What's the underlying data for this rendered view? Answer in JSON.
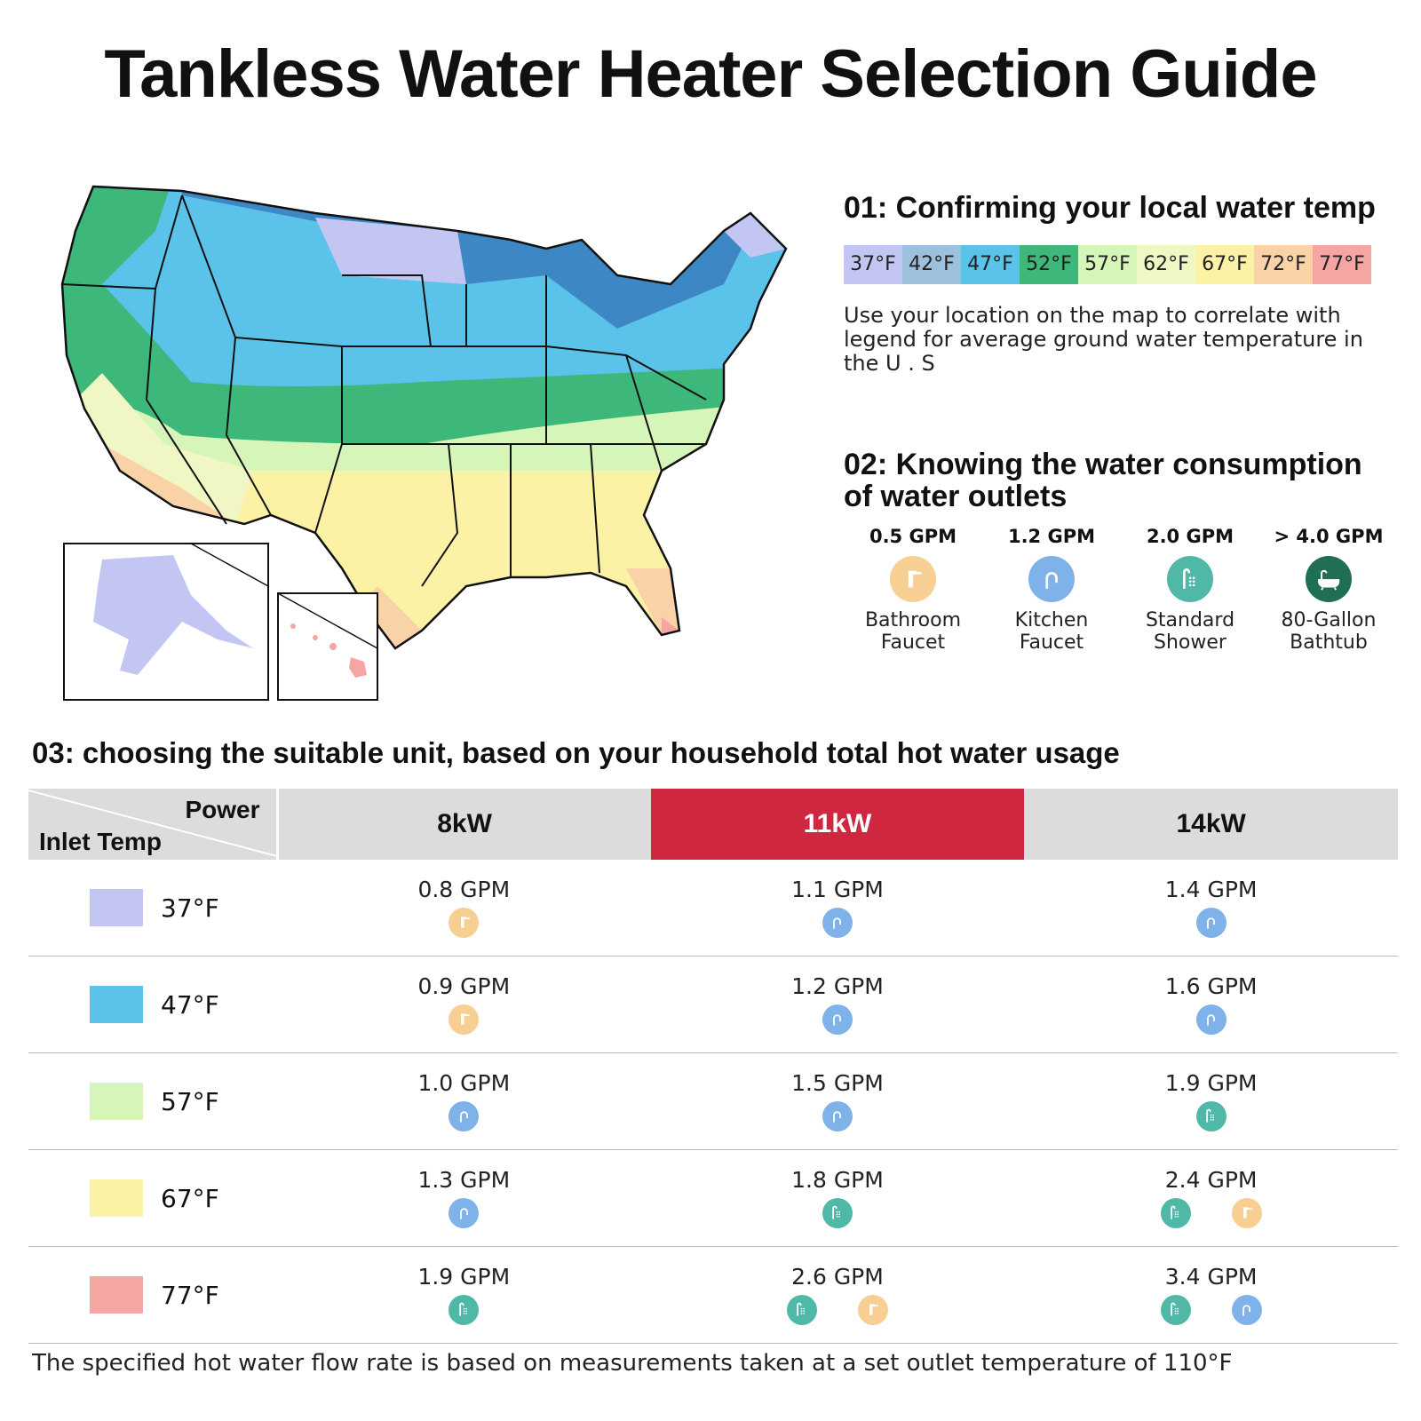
{
  "title": "Tankless Water Heater Selection Guide",
  "section1": {
    "heading": "01:  Confirming your local water temp",
    "legend": [
      {
        "label": "37°F",
        "color": "#c3c6f2"
      },
      {
        "label": "42°F",
        "color": "#9dc1dc"
      },
      {
        "label": "47°F",
        "color": "#5bc3ea"
      },
      {
        "label": "52°F",
        "color": "#3db87a"
      },
      {
        "label": "57°F",
        "color": "#d6f5b8"
      },
      {
        "label": "62°F",
        "color": "#f1f7c4"
      },
      {
        "label": "67°F",
        "color": "#fbf2a6"
      },
      {
        "label": "72°F",
        "color": "#f9d2a8"
      },
      {
        "label": "77°F",
        "color": "#f6a6a2"
      }
    ],
    "description": "Use your location on the map to correlate with legend for average ground water temperature in the U . S"
  },
  "section2": {
    "heading": "02:  Knowing the water consumption of water outlets",
    "outlets": [
      {
        "gpm": "0.5 GPM",
        "name": "Bathroom Faucet",
        "icon": "bathroom-faucet-icon",
        "color": "#f8cf93"
      },
      {
        "gpm": "1.2 GPM",
        "name": "Kitchen Faucet",
        "icon": "kitchen-faucet-icon",
        "color": "#7fb2e8"
      },
      {
        "gpm": "2.0 GPM",
        "name": "Standard Shower",
        "icon": "shower-icon",
        "color": "#4fb8a6"
      },
      {
        "gpm": "> 4.0 GPM",
        "name": "80-Gallon Bathtub",
        "icon": "bathtub-icon",
        "color": "#1f6e55"
      }
    ]
  },
  "section3": {
    "heading": "03:  choosing the suitable unit, based on your household total hot water usage",
    "corner_power": "Power",
    "corner_inlet": "Inlet Temp",
    "columns": [
      "8kW",
      "11kW",
      "14kW"
    ],
    "rows": [
      {
        "temp": "37°F",
        "color": "#c3c6f2",
        "cells": [
          {
            "gpm": "0.8 GPM",
            "icons": [
              "bathroom"
            ]
          },
          {
            "gpm": "1.1 GPM",
            "icons": [
              "kitchen"
            ]
          },
          {
            "gpm": "1.4 GPM",
            "icons": [
              "kitchen"
            ]
          }
        ]
      },
      {
        "temp": "47°F",
        "color": "#5bc3ea",
        "cells": [
          {
            "gpm": "0.9 GPM",
            "icons": [
              "bathroom"
            ]
          },
          {
            "gpm": "1.2 GPM",
            "icons": [
              "kitchen"
            ]
          },
          {
            "gpm": "1.6 GPM",
            "icons": [
              "kitchen"
            ]
          }
        ]
      },
      {
        "temp": "57°F",
        "color": "#d6f5b8",
        "cells": [
          {
            "gpm": "1.0 GPM",
            "icons": [
              "kitchen"
            ]
          },
          {
            "gpm": "1.5 GPM",
            "icons": [
              "kitchen"
            ]
          },
          {
            "gpm": "1.9 GPM",
            "icons": [
              "shower"
            ]
          }
        ]
      },
      {
        "temp": "67°F",
        "color": "#fbf2a6",
        "cells": [
          {
            "gpm": "1.3 GPM",
            "icons": [
              "kitchen"
            ]
          },
          {
            "gpm": "1.8 GPM",
            "icons": [
              "shower"
            ]
          },
          {
            "gpm": "2.4 GPM",
            "icons": [
              "shower",
              "bathroom"
            ]
          }
        ]
      },
      {
        "temp": "77°F",
        "color": "#f6a6a2",
        "cells": [
          {
            "gpm": "1.9 GPM",
            "icons": [
              "shower"
            ]
          },
          {
            "gpm": "2.6 GPM",
            "icons": [
              "shower",
              "bathroom"
            ]
          },
          {
            "gpm": "3.4 GPM",
            "icons": [
              "shower",
              "kitchen"
            ]
          }
        ]
      }
    ]
  },
  "footnote": "The specified hot water flow rate is based on measurements taken at a set outlet temperature of 110°F"
}
